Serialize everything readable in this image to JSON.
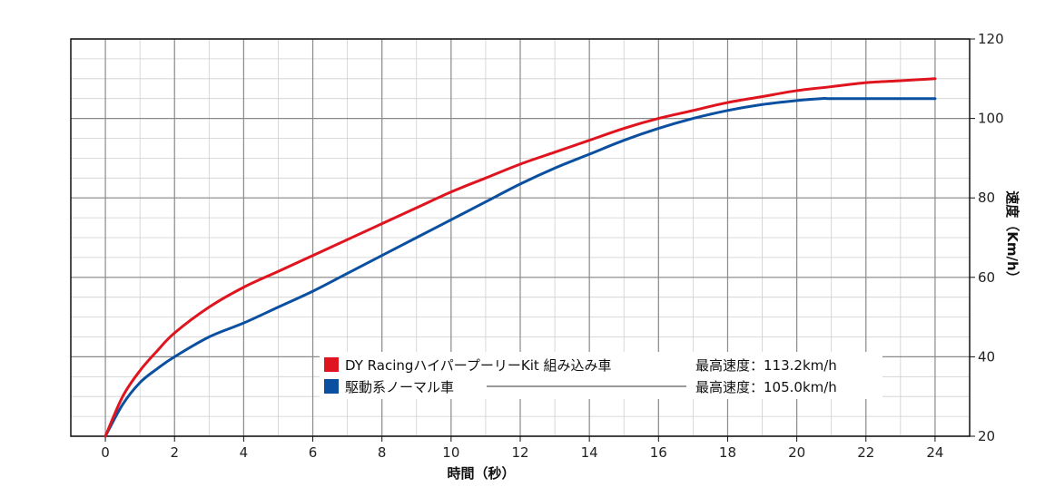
{
  "chart_data": {
    "type": "line",
    "xlabel": "時間（秒）",
    "ylabel": "速度（Km/h）",
    "xlim": [
      -1,
      25
    ],
    "ylim": [
      20,
      120
    ],
    "xticks": [
      0,
      2,
      4,
      6,
      8,
      10,
      12,
      14,
      16,
      18,
      20,
      22,
      24
    ],
    "yticks": [
      20,
      40,
      60,
      80,
      100,
      120
    ],
    "x_minor_step": 1,
    "y_minor_step": 5,
    "series": [
      {
        "name": "DY RacingハイパープーリーKit 組み込み車",
        "max_label": "最高速度：113.2km/h",
        "color": "#e0141e",
        "x": [
          0,
          0.5,
          1,
          1.5,
          2,
          3,
          4,
          5,
          6,
          7,
          8,
          9,
          10,
          11,
          12,
          13,
          14,
          15,
          16,
          17,
          18,
          19,
          20,
          21,
          22,
          23,
          24
        ],
        "y": [
          20,
          30,
          36.5,
          41.5,
          46,
          52.5,
          57.5,
          61.5,
          65.5,
          69.5,
          73.5,
          77.5,
          81.5,
          85,
          88.5,
          91.5,
          94.5,
          97.5,
          100,
          102,
          104,
          105.5,
          107,
          108,
          109,
          109.5,
          110
        ]
      },
      {
        "name": "駆動系ノーマル車",
        "max_label": "最高速度：105.0km/h",
        "color": "#0a4fa0",
        "x": [
          0,
          0.5,
          1,
          1.5,
          2,
          3,
          4,
          5,
          6,
          7,
          8,
          9,
          10,
          11,
          12,
          13,
          14,
          15,
          16,
          17,
          18,
          19,
          20,
          20.7,
          21,
          22,
          23,
          24
        ],
        "y": [
          20,
          28,
          33.5,
          37,
          40,
          45,
          48.5,
          52.5,
          56.5,
          61,
          65.5,
          70,
          74.5,
          79,
          83.5,
          87.5,
          91,
          94.5,
          97.5,
          100,
          102,
          103.5,
          104.5,
          105,
          105,
          105,
          105,
          105
        ]
      }
    ]
  },
  "legend": {
    "items": [
      {
        "name": "DY RacingハイパープーリーKit 組み込み車",
        "max_label": "最高速度：113.2km/h",
        "color": "#e0141e"
      },
      {
        "name": "駆動系ノーマル車",
        "max_label": "最高速度：105.0km/h",
        "color": "#0a4fa0"
      }
    ]
  }
}
